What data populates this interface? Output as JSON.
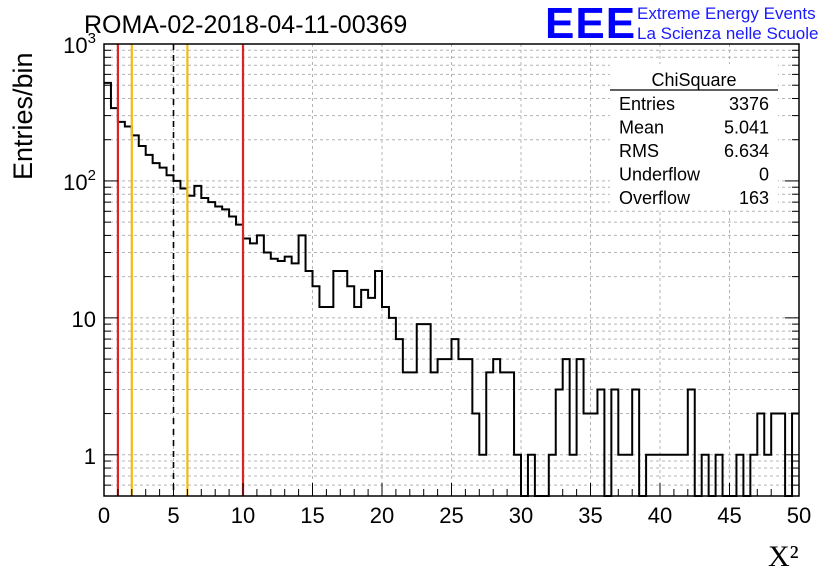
{
  "logo": {
    "mark": "EEE",
    "line1": "Extreme Energy Events",
    "line2": "La Scienza nelle Scuole",
    "color": "#0000ff"
  },
  "chart_data": {
    "type": "bar",
    "title": "ROMA-02-2018-04-11-00369",
    "xlabel": "X²",
    "ylabel": "Entries/bin",
    "xlim": [
      0,
      50
    ],
    "ylim": [
      0.5,
      1000
    ],
    "yscale": "log",
    "grid": true,
    "bin_width": 0.5,
    "x_ticks": [
      "0",
      "5",
      "10",
      "15",
      "20",
      "25",
      "30",
      "35",
      "40",
      "45",
      "50"
    ],
    "y_ticks": [
      {
        "value": 1,
        "label": "1"
      },
      {
        "value": 10,
        "label": "10"
      },
      {
        "value": 100,
        "label": "10^2"
      },
      {
        "value": 1000,
        "label": "10^3"
      }
    ],
    "bin_edges_start": 0,
    "counts": [
      520,
      340,
      270,
      250,
      215,
      180,
      155,
      135,
      125,
      110,
      100,
      88,
      78,
      92,
      75,
      70,
      65,
      62,
      55,
      48,
      38,
      35,
      40,
      30,
      27,
      26,
      28,
      25,
      40,
      22,
      17,
      12,
      12,
      22,
      22,
      17,
      12,
      16,
      14,
      22,
      12,
      10,
      7,
      4,
      4,
      9,
      9,
      4,
      5,
      5,
      7,
      5,
      5,
      2,
      1,
      4,
      5,
      4,
      4,
      1,
      0.5,
      1,
      0,
      0,
      1,
      3,
      5,
      1,
      5,
      2,
      2,
      3,
      0,
      3,
      1,
      1,
      3,
      0,
      1,
      1,
      1,
      1,
      1,
      1,
      3,
      0,
      1,
      0,
      1,
      0,
      0,
      1,
      0.5,
      1,
      2,
      1,
      2,
      2,
      0,
      2
    ],
    "vertical_lines": [
      {
        "x": 1,
        "color": "#dd2222",
        "style": "solid"
      },
      {
        "x": 2,
        "color": "#f2bb14",
        "style": "solid"
      },
      {
        "x": 5,
        "color": "#000000",
        "style": "dashed"
      },
      {
        "x": 6,
        "color": "#f2bb14",
        "style": "solid"
      },
      {
        "x": 10,
        "color": "#dd2222",
        "style": "solid"
      }
    ],
    "stats": {
      "name": "ChiSquare",
      "rows": [
        {
          "label": "Entries",
          "value": "3376"
        },
        {
          "label": "Mean",
          "value": "5.041"
        },
        {
          "label": "RMS",
          "value": "6.634"
        },
        {
          "label": "Underflow",
          "value": "0"
        },
        {
          "label": "Overflow",
          "value": "163"
        }
      ],
      "placement": "top-right"
    }
  }
}
